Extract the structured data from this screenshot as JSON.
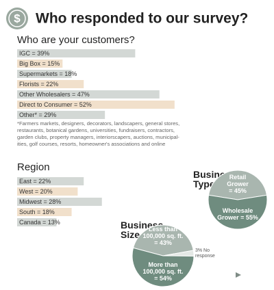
{
  "icon": "$",
  "title": "Who responded to our survey?",
  "chart_data": [
    {
      "type": "bar",
      "title": "Who are your customers?",
      "values": [
        39,
        15,
        18,
        22,
        47,
        52,
        29
      ],
      "value_labels": [
        "IGC = 39%",
        "Big Box = 15%",
        "Supermarkets = 18%",
        "Florists = 22%",
        "Other Wholesalers = 47%",
        "Direct to Consumer = 52%",
        "Other* = 29%"
      ],
      "colors": [
        "#d3d8d5",
        "#f1e0cb",
        "#d3d8d5",
        "#f1e0cb",
        "#d3d8d5",
        "#f1e0cb",
        "#d3d8d5"
      ],
      "note": "*Farmers markets, designers, decorators, landscapers, general stores,\nrestaurants, botanical gardens, universities, fundraisers, contractors,\ngarden clubs, property managers, interiorscapers, auctions, municipal-\nities, golf courses, resorts, homeowner's associations and online"
    },
    {
      "type": "bar",
      "title": "Region",
      "values": [
        22,
        20,
        28,
        18,
        13
      ],
      "value_labels": [
        "East = 22%",
        "West = 20%",
        "Midwest = 28%",
        "South = 18%",
        "Canada = 13%"
      ],
      "colors": [
        "#d3d8d5",
        "#f1e0cb",
        "#d3d8d5",
        "#f1e0cb",
        "#d3d8d5"
      ]
    },
    {
      "type": "pie",
      "title": "Business\nType",
      "values": [
        45,
        55
      ],
      "value_labels": [
        "Retail\nGrower\n= 45%",
        "Wholesale\nGrower = 55%"
      ],
      "colors": [
        "#a9b6af",
        "#6f8c7f"
      ]
    },
    {
      "type": "pie",
      "title": "Business\nSize",
      "values": [
        43,
        3,
        54
      ],
      "value_labels": [
        "Less than\n100,000 sq. ft.\n= 43%",
        "3% No\nresponse",
        "More than\n100,000 sq. ft.\n= 54%"
      ],
      "colors": [
        "#a9b6af",
        "#e4e8e5",
        "#6f8c7f"
      ]
    }
  ]
}
